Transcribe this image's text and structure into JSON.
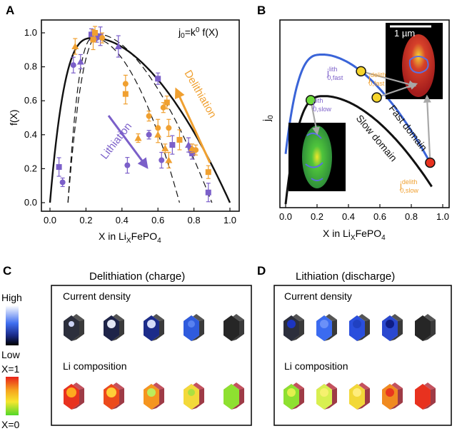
{
  "panels": {
    "a": "A",
    "b": "B",
    "c": "C",
    "d": "D"
  },
  "colors": {
    "purple": "#7b5fc9",
    "orange": "#f0a030",
    "blue": "#3a64d8",
    "black": "#111111",
    "green": "#6ddc3a",
    "yellow": "#f6d52c",
    "red": "#e8321f"
  },
  "chart_data": [
    {
      "type": "scatter",
      "panel": "A",
      "annotation": "j0=k0 f(X)",
      "xlabel": "X in LiXFePO4",
      "ylabel": "f(X)",
      "xlim": [
        0,
        1.0
      ],
      "ylim": [
        0,
        1.05
      ],
      "xticks": [
        "0.0",
        "0.2",
        "0.4",
        "0.6",
        "0.8",
        "1.0"
      ],
      "yticks": [
        "0.0",
        "0.2",
        "0.4",
        "0.6",
        "0.8",
        "1.0"
      ],
      "arrows": [
        {
          "label": "Lithiation",
          "color": "#7b5fc9"
        },
        {
          "label": "Delithiation",
          "color": "#f0a030"
        }
      ],
      "series": [
        {
          "color": "#7b5fc9",
          "shape": "circle",
          "points": [
            [
              0.07,
              0.12
            ],
            [
              0.13,
              0.81
            ],
            [
              0.26,
              0.97
            ],
            [
              0.43,
              0.22
            ],
            [
              0.55,
              0.4
            ],
            [
              0.62,
              0.25
            ],
            [
              0.78,
              0.32
            ]
          ]
        },
        {
          "color": "#7b5fc9",
          "shape": "square",
          "points": [
            [
              0.05,
              0.21
            ],
            [
              0.23,
              0.99
            ],
            [
              0.28,
              0.98
            ],
            [
              0.6,
              0.73
            ],
            [
              0.68,
              0.34
            ],
            [
              0.79,
              0.29
            ],
            [
              0.88,
              0.06
            ]
          ]
        },
        {
          "color": "#7b5fc9",
          "shape": "triangle",
          "points": [
            [
              0.17,
              0.83
            ],
            [
              0.38,
              0.92
            ],
            [
              0.77,
              0.34
            ]
          ]
        },
        {
          "color": "#f0a030",
          "shape": "circle",
          "points": [
            [
              0.29,
              0.97
            ],
            [
              0.42,
              0.7
            ],
            [
              0.55,
              0.51
            ],
            [
              0.6,
              0.44
            ],
            [
              0.63,
              0.56
            ],
            [
              0.66,
              0.44
            ],
            [
              0.81,
              0.31
            ]
          ]
        },
        {
          "color": "#f0a030",
          "shape": "square",
          "points": [
            [
              0.24,
              0.96
            ],
            [
              0.25,
              1.0
            ],
            [
              0.42,
              0.64
            ],
            [
              0.65,
              0.59
            ],
            [
              0.72,
              0.37
            ],
            [
              0.88,
              0.18
            ]
          ]
        },
        {
          "color": "#f0a030",
          "shape": "triangle",
          "points": [
            [
              0.14,
              0.92
            ],
            [
              0.49,
              0.38
            ],
            [
              0.6,
              0.4
            ],
            [
              0.64,
              0.32
            ],
            [
              0.66,
              0.25
            ],
            [
              0.79,
              0.32
            ]
          ]
        }
      ]
    },
    {
      "type": "line",
      "panel": "B",
      "xlabel": "X in LiXFePO4",
      "ylabel": "j0",
      "xlim": [
        0,
        1.0
      ],
      "xticks": [
        "0.0",
        "0.2",
        "0.4",
        "0.6",
        "0.8",
        "1.0"
      ],
      "scalebar": "1 µm",
      "series": [
        {
          "name": "Fast domain",
          "color": "#3a64d8"
        },
        {
          "name": "Slow domain",
          "color": "#111111"
        }
      ],
      "markers": [
        {
          "label": "j0,slow lith",
          "x": 0.16,
          "color": "#6ddc3a"
        },
        {
          "label": "j0,fast lith",
          "x": 0.48,
          "color": "#f6d52c"
        },
        {
          "label": "j0,fast delith",
          "x": 0.58,
          "color": "#f6d52c"
        },
        {
          "label": "j0,slow delith",
          "x": 0.92,
          "color": "#e8321f"
        }
      ]
    }
  ],
  "panel_c": {
    "title": "Delithiation (charge)",
    "row1": "Current density",
    "row2": "Li composition",
    "current": [
      {
        "face": "#2c2f3c",
        "spot": "#d4dcff",
        "r": 4
      },
      {
        "face": "#1e2448",
        "spot": "#eef2ff",
        "r": 6
      },
      {
        "face": "#1c2c8a",
        "spot": "#dfe6ff",
        "r": 6
      },
      {
        "face": "#2f5bdd",
        "spot": "#5b84f0",
        "r": 5
      },
      {
        "face": "#262626",
        "spot": "#262626",
        "r": 0
      }
    ],
    "composition": [
      {
        "face": "#e8321f",
        "spot": "#ffb020",
        "r": 7
      },
      {
        "face": "#ec4a1c",
        "spot": "#ffd53a",
        "r": 7
      },
      {
        "face": "#f5951f",
        "spot": "#b8f060",
        "r": 6
      },
      {
        "face": "#f3d93a",
        "spot": "#a8e040",
        "r": 5
      },
      {
        "face": "#8ee030",
        "spot": "#8ee030",
        "r": 0
      }
    ]
  },
  "panel_d": {
    "title": "Lithiation (discharge)",
    "row1": "Current density",
    "row2": "Li composition",
    "current": [
      {
        "face": "#2c2f3c",
        "spot": "#1b36c8",
        "r": 6
      },
      {
        "face": "#3b6bf0",
        "spot": "#6e92f8",
        "r": 6
      },
      {
        "face": "#2a4fdd",
        "spot": "#2040c0",
        "r": 6
      },
      {
        "face": "#2a48cf",
        "spot": "#0d1a80",
        "r": 6
      },
      {
        "face": "#262626",
        "spot": "#262626",
        "r": 0
      }
    ],
    "composition": [
      {
        "face": "#8ee030",
        "spot": "#e8f050",
        "r": 6
      },
      {
        "face": "#d8ef50",
        "spot": "#f8f070",
        "r": 6
      },
      {
        "face": "#f2d838",
        "spot": "#ffee80",
        "r": 6
      },
      {
        "face": "#f08a20",
        "spot": "#e8321f",
        "r": 6
      },
      {
        "face": "#e8321f",
        "spot": "#e8321f",
        "r": 0
      }
    ]
  },
  "legend": {
    "high": "High",
    "low": "Low",
    "x1": "X=1",
    "x0": "X=0"
  }
}
